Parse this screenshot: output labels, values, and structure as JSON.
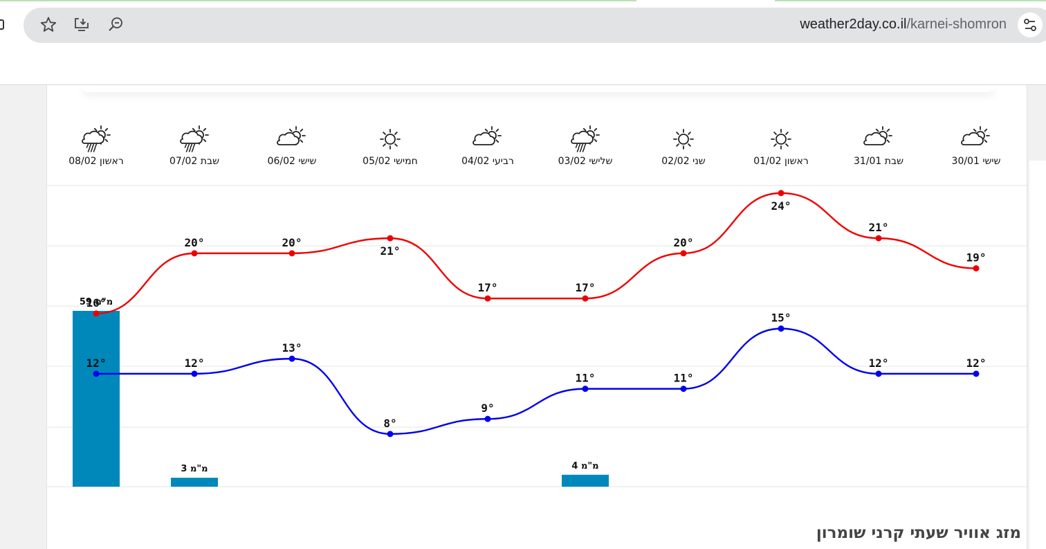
{
  "browser": {
    "url_domain": "weather2day.co.il",
    "url_path": "/karnei-shomron",
    "icons": [
      "bookmark-star-icon",
      "install-app-icon",
      "zoom-icon",
      "site-settings-icon",
      "extension-icon"
    ]
  },
  "forecast": {
    "days": [
      {
        "label": "שישי 30/01",
        "icon": "partly-cloudy-icon"
      },
      {
        "label": "שבת 31/01",
        "icon": "partly-cloudy-icon"
      },
      {
        "label": "ראשון 01/02",
        "icon": "sunny-icon"
      },
      {
        "label": "שני 02/02",
        "icon": "sunny-icon"
      },
      {
        "label": "שלישי 03/02",
        "icon": "rain-showers-icon"
      },
      {
        "label": "רביעי 04/02",
        "icon": "partly-cloudy-icon"
      },
      {
        "label": "חמישי 05/02",
        "icon": "sunny-icon"
      },
      {
        "label": "שישי 06/02",
        "icon": "partly-cloudy-icon"
      },
      {
        "label": "שבת 07/02",
        "icon": "rain-showers-icon"
      },
      {
        "label": "ראשון 08/02",
        "icon": "rain-showers-icon"
      }
    ]
  },
  "chart_data": {
    "type": "line",
    "categories": [
      "שישי 30/01",
      "שבת 31/01",
      "ראשון 01/02",
      "שני 02/02",
      "שלישי 03/02",
      "רביעי 04/02",
      "חמישי 05/02",
      "שישי 06/02",
      "שבת 07/02",
      "ראשון 08/02"
    ],
    "series": [
      {
        "values": [
          19,
          21,
          24,
          20,
          17,
          17,
          21,
          20,
          20,
          16
        ],
        "color": "#ee0000",
        "unit": "°"
      },
      {
        "values": [
          12,
          12,
          15,
          11,
          11,
          9,
          8,
          13,
          12,
          12
        ],
        "color": "#0000ee",
        "unit": "°"
      }
    ],
    "rain": {
      "values": [
        0,
        0,
        0,
        0,
        4,
        0,
        0,
        0,
        3,
        59
      ],
      "labels": [
        "",
        "",
        "",
        "",
        "4 מ\"מ",
        "",
        "",
        "",
        "3 מ\"מ",
        "59 מ\"מ"
      ],
      "color": "#0088bb"
    },
    "grid": true
  },
  "section_title": "מזג אוויר שעתי קרני שומרון"
}
